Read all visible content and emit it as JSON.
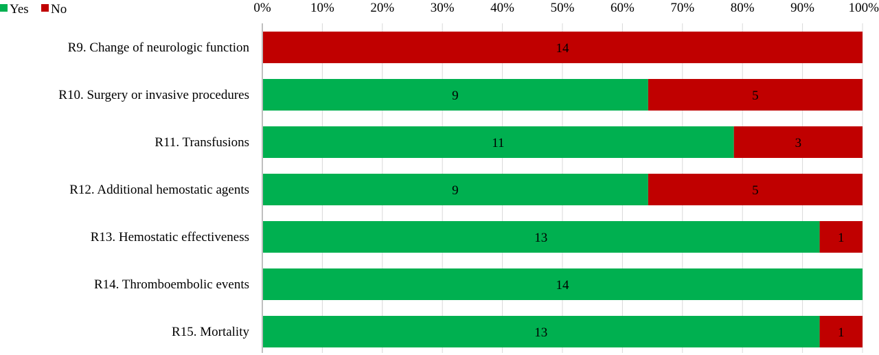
{
  "chart_data": {
    "type": "bar",
    "orientation": "horizontal",
    "stacked": "percent",
    "categories": [
      "R9. Change of neurologic function",
      "R10. Surgery or invasive procedures",
      "R11. Transfusions",
      "R12. Additional hemostatic agents",
      "R13. Hemostatic effectiveness",
      "R14. Thromboembolic events",
      "R15. Mortality"
    ],
    "series": [
      {
        "name": "Yes",
        "color": "#00b050",
        "values": [
          0,
          9,
          11,
          9,
          13,
          14,
          13
        ]
      },
      {
        "name": "No",
        "color": "#c00000",
        "values": [
          14,
          5,
          3,
          5,
          1,
          0,
          1
        ]
      }
    ],
    "x_ticks": [
      "0%",
      "10%",
      "20%",
      "30%",
      "40%",
      "50%",
      "60%",
      "70%",
      "80%",
      "90%",
      "100%"
    ],
    "xlim": [
      0,
      100
    ],
    "x_tick_position": "top",
    "grid": true,
    "legend_position": "top-left"
  }
}
